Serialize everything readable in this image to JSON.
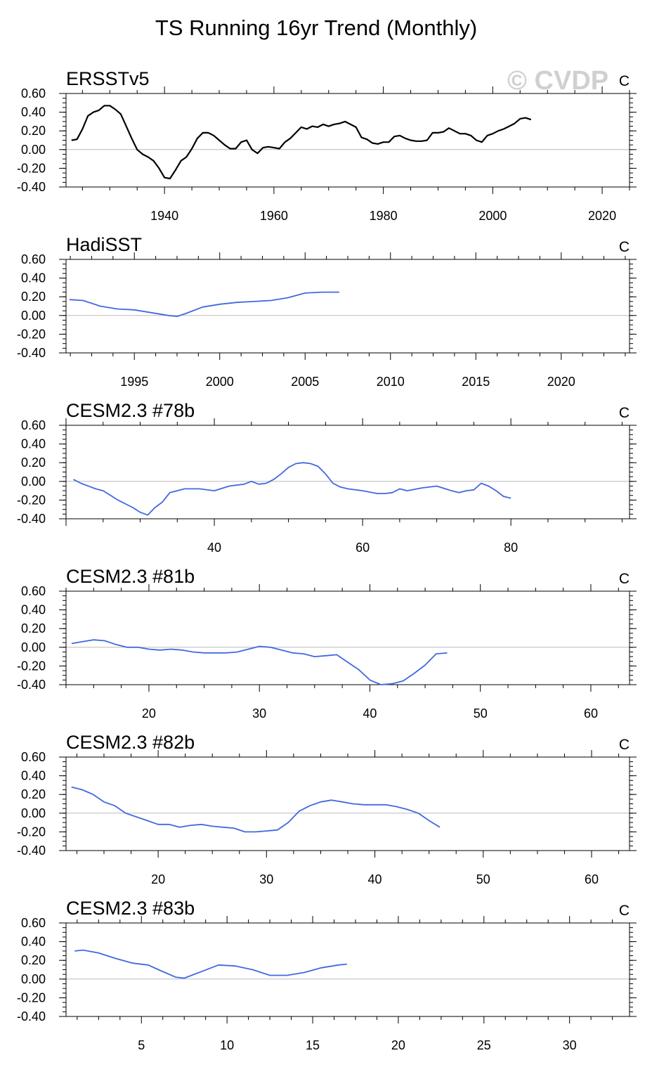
{
  "title": "TS Running 16yr Trend (Monthly)",
  "watermark": "© CVDP",
  "chart_data": [
    {
      "type": "line",
      "title": "ERSSTv5",
      "unit": "C",
      "color": "#000000",
      "xlim": [
        1922,
        2025
      ],
      "ylim": [
        -0.4,
        0.6
      ],
      "yticks": [
        "0.60",
        "0.40",
        "0.20",
        "0.00",
        "-0.20",
        "-0.40"
      ],
      "xticks": [
        1940,
        1960,
        1980,
        2000,
        2020
      ],
      "x": [
        1923,
        1924,
        1925,
        1926,
        1927,
        1928,
        1929,
        1930,
        1931,
        1932,
        1933,
        1934,
        1935,
        1936,
        1937,
        1938,
        1939,
        1940,
        1941,
        1942,
        1943,
        1944,
        1945,
        1946,
        1947,
        1948,
        1949,
        1950,
        1951,
        1952,
        1953,
        1954,
        1955,
        1956,
        1957,
        1958,
        1959,
        1960,
        1961,
        1962,
        1963,
        1964,
        1965,
        1966,
        1967,
        1968,
        1969,
        1970,
        1971,
        1972,
        1973,
        1974,
        1975,
        1976,
        1977,
        1978,
        1979,
        1980,
        1981,
        1982,
        1983,
        1984,
        1985,
        1986,
        1987,
        1988,
        1989,
        1990,
        1991,
        1992,
        1993,
        1994,
        1995,
        1996,
        1997,
        1998,
        1999,
        2000,
        2001,
        2002,
        2003,
        2004,
        2005,
        2006,
        2007
      ],
      "y": [
        0.1,
        0.11,
        0.22,
        0.36,
        0.4,
        0.42,
        0.47,
        0.47,
        0.43,
        0.38,
        0.25,
        0.12,
        0.0,
        -0.05,
        -0.08,
        -0.12,
        -0.2,
        -0.3,
        -0.31,
        -0.22,
        -0.12,
        -0.08,
        0.01,
        0.12,
        0.18,
        0.18,
        0.15,
        0.1,
        0.05,
        0.01,
        0.01,
        0.08,
        0.1,
        0.0,
        -0.04,
        0.02,
        0.03,
        0.02,
        0.01,
        0.08,
        0.12,
        0.18,
        0.24,
        0.22,
        0.25,
        0.24,
        0.27,
        0.25,
        0.27,
        0.28,
        0.3,
        0.27,
        0.24,
        0.13,
        0.11,
        0.07,
        0.06,
        0.08,
        0.08,
        0.14,
        0.15,
        0.12,
        0.1,
        0.09,
        0.09,
        0.1,
        0.18,
        0.18,
        0.19,
        0.23,
        0.2,
        0.17,
        0.17,
        0.15,
        0.1,
        0.08,
        0.15,
        0.17,
        0.2,
        0.22,
        0.25,
        0.28,
        0.33,
        0.34,
        0.32
      ]
    },
    {
      "type": "line",
      "title": "HadiSST",
      "unit": "C",
      "color": "#4169e1",
      "xlim": [
        1991,
        2024
      ],
      "ylim": [
        -0.4,
        0.6
      ],
      "yticks": [
        "0.60",
        "0.40",
        "0.20",
        "0.00",
        "-0.20",
        "-0.40"
      ],
      "xticks": [
        1995,
        2000,
        2005,
        2010,
        2015,
        2020
      ],
      "x": [
        1991.2,
        1992,
        1993,
        1994,
        1995,
        1996,
        1997,
        1997.5,
        1998,
        1999,
        2000,
        2001,
        2002,
        2003,
        2004,
        2005,
        2006,
        2007
      ],
      "y": [
        0.17,
        0.16,
        0.1,
        0.07,
        0.06,
        0.03,
        0.0,
        -0.01,
        0.02,
        0.09,
        0.12,
        0.14,
        0.15,
        0.16,
        0.19,
        0.24,
        0.25,
        0.25
      ]
    },
    {
      "type": "line",
      "title": "CESM2.3 #78b",
      "unit": "C",
      "color": "#4169e1",
      "xlim": [
        20,
        96
      ],
      "ylim": [
        -0.4,
        0.6
      ],
      "yticks": [
        "0.60",
        "0.40",
        "0.20",
        "0.00",
        "-0.20",
        "-0.40"
      ],
      "xticks": [
        40,
        60,
        80
      ],
      "x": [
        21,
        22,
        24,
        25,
        27,
        29,
        30,
        31,
        32,
        33,
        34,
        36,
        38,
        40,
        42,
        44,
        45,
        46,
        47,
        48,
        49,
        50,
        51,
        52,
        53,
        54,
        55,
        56,
        57,
        58,
        60,
        62,
        63,
        64,
        65,
        66,
        68,
        70,
        72,
        73,
        74,
        75,
        76,
        77,
        78,
        79,
        80
      ],
      "y": [
        0.02,
        -0.02,
        -0.08,
        -0.1,
        -0.2,
        -0.28,
        -0.33,
        -0.36,
        -0.28,
        -0.22,
        -0.12,
        -0.08,
        -0.08,
        -0.1,
        -0.05,
        -0.03,
        0.0,
        -0.03,
        -0.02,
        0.02,
        0.08,
        0.15,
        0.19,
        0.2,
        0.19,
        0.16,
        0.08,
        -0.02,
        -0.06,
        -0.08,
        -0.1,
        -0.13,
        -0.13,
        -0.12,
        -0.08,
        -0.1,
        -0.07,
        -0.05,
        -0.1,
        -0.12,
        -0.1,
        -0.09,
        -0.02,
        -0.05,
        -0.1,
        -0.16,
        -0.18
      ]
    },
    {
      "type": "line",
      "title": "CESM2.3 #81b",
      "unit": "C",
      "color": "#4169e1",
      "xlim": [
        12.5,
        63.5
      ],
      "ylim": [
        -0.4,
        0.6
      ],
      "yticks": [
        "0.60",
        "0.40",
        "0.20",
        "0.00",
        "-0.20",
        "-0.40"
      ],
      "xticks": [
        20,
        30,
        40,
        50,
        60
      ],
      "x": [
        13,
        14,
        15,
        16,
        17,
        18,
        19,
        20,
        21,
        22,
        23,
        24,
        25,
        26,
        27,
        28,
        29,
        30,
        31,
        32,
        33,
        34,
        35,
        36,
        37,
        38,
        39,
        40,
        41,
        42,
        43,
        44,
        45,
        46,
        47
      ],
      "y": [
        0.04,
        0.06,
        0.08,
        0.07,
        0.03,
        0.0,
        0.0,
        -0.02,
        -0.03,
        -0.02,
        -0.03,
        -0.05,
        -0.06,
        -0.06,
        -0.06,
        -0.05,
        -0.02,
        0.01,
        0.0,
        -0.03,
        -0.06,
        -0.07,
        -0.1,
        -0.09,
        -0.08,
        -0.16,
        -0.24,
        -0.35,
        -0.4,
        -0.39,
        -0.36,
        -0.28,
        -0.19,
        -0.07,
        -0.06
      ]
    },
    {
      "type": "line",
      "title": "CESM2.3 #82b",
      "unit": "C",
      "color": "#4169e1",
      "xlim": [
        11.5,
        63.5
      ],
      "ylim": [
        -0.4,
        0.6
      ],
      "yticks": [
        "0.60",
        "0.40",
        "0.20",
        "0.00",
        "-0.20",
        "-0.40"
      ],
      "xticks": [
        20,
        30,
        40,
        50,
        60
      ],
      "x": [
        12,
        13,
        14,
        15,
        16,
        17,
        18,
        19,
        20,
        21,
        22,
        23,
        24,
        25,
        26,
        27,
        28,
        29,
        30,
        31,
        32,
        33,
        34,
        35,
        36,
        37,
        38,
        39,
        40,
        41,
        42,
        43,
        44,
        45,
        46
      ],
      "y": [
        0.28,
        0.25,
        0.2,
        0.12,
        0.08,
        0.0,
        -0.04,
        -0.08,
        -0.12,
        -0.12,
        -0.15,
        -0.13,
        -0.12,
        -0.14,
        -0.15,
        -0.16,
        -0.2,
        -0.2,
        -0.19,
        -0.18,
        -0.1,
        0.02,
        0.08,
        0.12,
        0.14,
        0.12,
        0.1,
        0.09,
        0.09,
        0.09,
        0.07,
        0.04,
        0.0,
        -0.08,
        -0.15
      ]
    },
    {
      "type": "line",
      "title": "CESM2.3 #83b",
      "unit": "C",
      "color": "#4169e1",
      "xlim": [
        0.6,
        33.5
      ],
      "ylim": [
        -0.4,
        0.6
      ],
      "yticks": [
        "0.60",
        "0.40",
        "0.20",
        "0.00",
        "-0.20",
        "-0.40"
      ],
      "xticks": [
        5,
        10,
        15,
        20,
        25,
        30
      ],
      "x": [
        1.1,
        1.6,
        2.5,
        3.5,
        4.5,
        5.4,
        6,
        7,
        7.5,
        8.5,
        9.5,
        10.5,
        11.5,
        12.5,
        13.5,
        14.5,
        15.5,
        16.5,
        17
      ],
      "y": [
        0.3,
        0.31,
        0.28,
        0.22,
        0.17,
        0.15,
        0.1,
        0.02,
        0.01,
        0.08,
        0.15,
        0.14,
        0.1,
        0.04,
        0.04,
        0.07,
        0.12,
        0.15,
        0.16
      ]
    }
  ]
}
